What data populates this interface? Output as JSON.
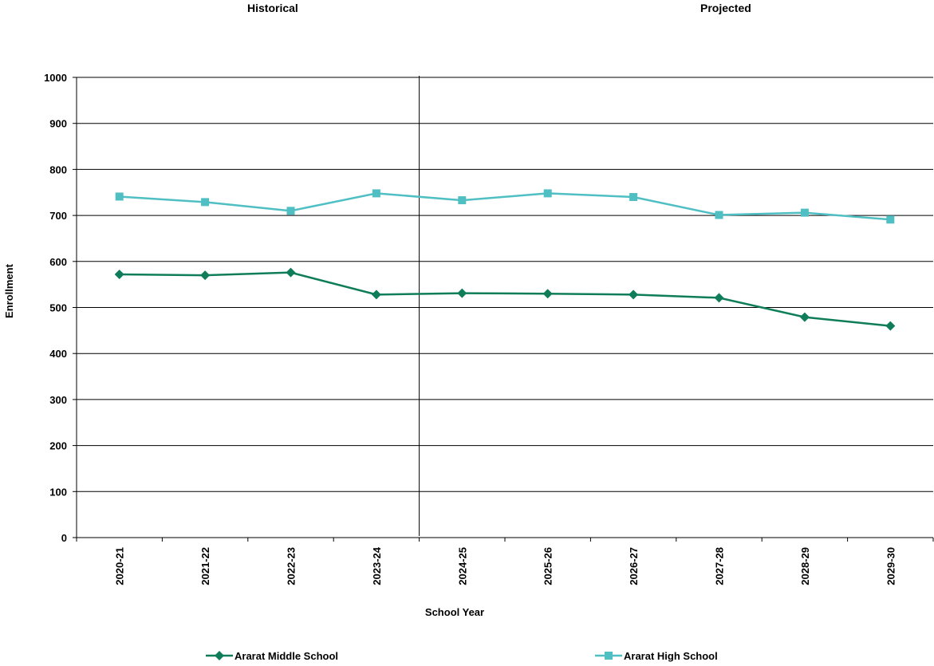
{
  "chart_data": {
    "type": "line",
    "section_labels": [
      "Historical",
      "Projected"
    ],
    "categories": [
      "2020-21",
      "2021-22",
      "2022-23",
      "2023-24",
      "2024-25",
      "2025-26",
      "2026-27",
      "2027-28",
      "2028-29",
      "2029-30"
    ],
    "divider_between": [
      "2023-24",
      "2024-25"
    ],
    "series": [
      {
        "name": "Ararat Middle School",
        "color": "#0f7d59",
        "marker": "diamond",
        "values": [
          572,
          570,
          576,
          528,
          531,
          530,
          528,
          521,
          479,
          460
        ]
      },
      {
        "name": "Ararat High School",
        "color": "#4fbfc3",
        "marker": "square",
        "values": [
          741,
          729,
          710,
          748,
          733,
          748,
          740,
          701,
          706,
          691
        ]
      }
    ],
    "xlabel": "School Year",
    "ylabel": "Enrollment",
    "ylim": [
      0,
      1000
    ],
    "yticks": [
      0,
      100,
      200,
      300,
      400,
      500,
      600,
      700,
      800,
      900,
      1000
    ],
    "grid": true,
    "legend_position": "bottom"
  }
}
